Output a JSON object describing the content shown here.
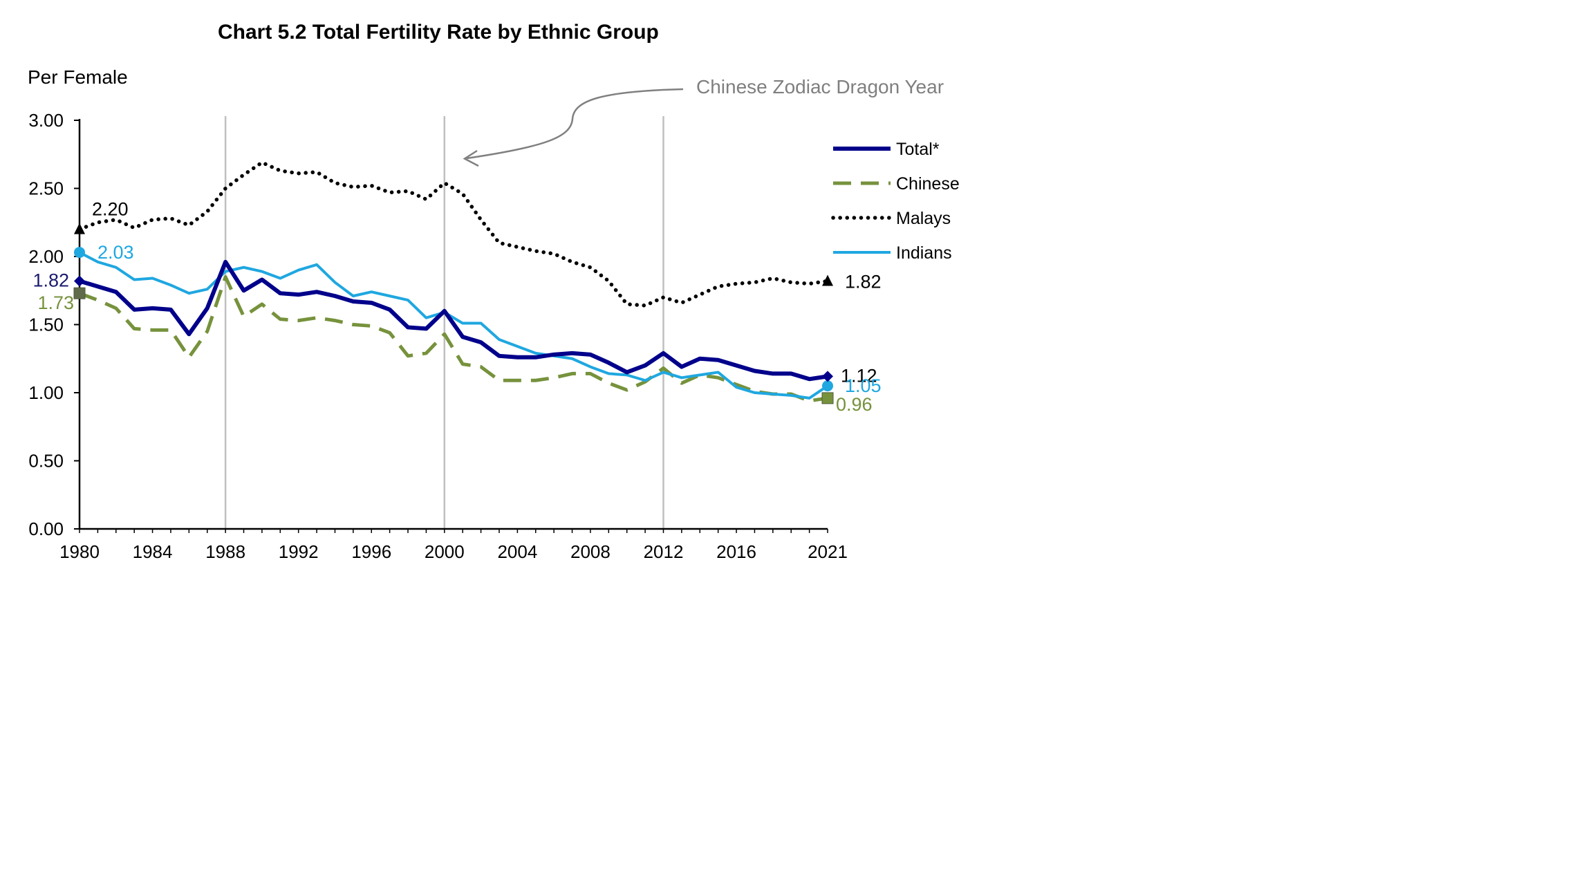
{
  "chart_data": {
    "type": "line",
    "title": "Chart 5.2  Total Fertility Rate by Ethnic Group",
    "ylabel": "Per Female",
    "xlabel": "",
    "ylim": [
      0,
      3
    ],
    "xlim": [
      1980,
      2021
    ],
    "yticks": [
      "0.00",
      "0.50",
      "1.00",
      "1.50",
      "2.00",
      "2.50",
      "3.00"
    ],
    "yticks_values": [
      0,
      0.5,
      1,
      1.5,
      2,
      2.5,
      3
    ],
    "xticks": [
      "1980",
      "1984",
      "1988",
      "1992",
      "1996",
      "2000",
      "2004",
      "2008",
      "2012",
      "2016",
      "2021"
    ],
    "xticks_values": [
      1980,
      1984,
      1988,
      1992,
      1996,
      2000,
      2004,
      2008,
      2012,
      2016,
      2021
    ],
    "grid": false,
    "legend_position": "right",
    "reference_lines_x": [
      1988,
      2000,
      2012
    ],
    "annotation": "Chinese Zodiac Dragon Year",
    "x": [
      1980,
      1981,
      1982,
      1983,
      1984,
      1985,
      1986,
      1987,
      1988,
      1989,
      1990,
      1991,
      1992,
      1993,
      1994,
      1995,
      1996,
      1997,
      1998,
      1999,
      2000,
      2001,
      2002,
      2003,
      2004,
      2005,
      2006,
      2007,
      2008,
      2009,
      2010,
      2011,
      2012,
      2013,
      2014,
      2015,
      2016,
      2017,
      2018,
      2019,
      2020,
      2021
    ],
    "series": [
      {
        "name": "Total*",
        "color": "#00008b",
        "style": "solid",
        "marker": "diamond",
        "values": [
          1.82,
          1.78,
          1.74,
          1.61,
          1.62,
          1.61,
          1.43,
          1.62,
          1.96,
          1.75,
          1.83,
          1.73,
          1.72,
          1.74,
          1.71,
          1.67,
          1.66,
          1.61,
          1.48,
          1.47,
          1.6,
          1.41,
          1.37,
          1.27,
          1.26,
          1.26,
          1.28,
          1.29,
          1.28,
          1.22,
          1.15,
          1.2,
          1.29,
          1.19,
          1.25,
          1.24,
          1.2,
          1.16,
          1.14,
          1.14,
          1.1,
          1.12
        ],
        "start_label": "1.82",
        "end_label": "1.12"
      },
      {
        "name": "Chinese",
        "color": "#76923c",
        "style": "dashed",
        "marker": "square",
        "values": [
          1.73,
          1.68,
          1.62,
          1.47,
          1.46,
          1.46,
          1.26,
          1.45,
          1.85,
          1.56,
          1.65,
          1.54,
          1.53,
          1.55,
          1.53,
          1.5,
          1.49,
          1.44,
          1.27,
          1.29,
          1.43,
          1.21,
          1.19,
          1.09,
          1.09,
          1.09,
          1.11,
          1.14,
          1.14,
          1.07,
          1.02,
          1.08,
          1.18,
          1.07,
          1.13,
          1.11,
          1.06,
          1.01,
          0.99,
          0.99,
          0.94,
          0.96
        ],
        "start_label": "1.73",
        "end_label": "0.96"
      },
      {
        "name": "Malays",
        "color": "#000000",
        "style": "dotted",
        "marker": "triangle",
        "values": [
          2.2,
          2.25,
          2.27,
          2.21,
          2.27,
          2.28,
          2.23,
          2.33,
          2.5,
          2.6,
          2.69,
          2.63,
          2.61,
          2.62,
          2.54,
          2.51,
          2.52,
          2.47,
          2.48,
          2.42,
          2.54,
          2.46,
          2.27,
          2.1,
          2.07,
          2.04,
          2.02,
          1.96,
          1.92,
          1.82,
          1.65,
          1.64,
          1.7,
          1.66,
          1.72,
          1.78,
          1.8,
          1.81,
          1.84,
          1.81,
          1.8,
          1.82
        ],
        "start_label": "2.20",
        "end_label": "1.82"
      },
      {
        "name": "Indians",
        "color": "#1fa7e0",
        "style": "solid",
        "marker": "circle",
        "values": [
          2.03,
          1.96,
          1.92,
          1.83,
          1.84,
          1.79,
          1.73,
          1.76,
          1.89,
          1.92,
          1.89,
          1.84,
          1.9,
          1.94,
          1.81,
          1.71,
          1.74,
          1.71,
          1.68,
          1.55,
          1.59,
          1.51,
          1.51,
          1.39,
          1.34,
          1.29,
          1.27,
          1.25,
          1.19,
          1.14,
          1.13,
          1.09,
          1.15,
          1.11,
          1.13,
          1.15,
          1.04,
          1.0,
          0.99,
          0.98,
          0.96,
          1.05
        ],
        "start_label": "2.03",
        "end_label": "1.05"
      }
    ]
  }
}
